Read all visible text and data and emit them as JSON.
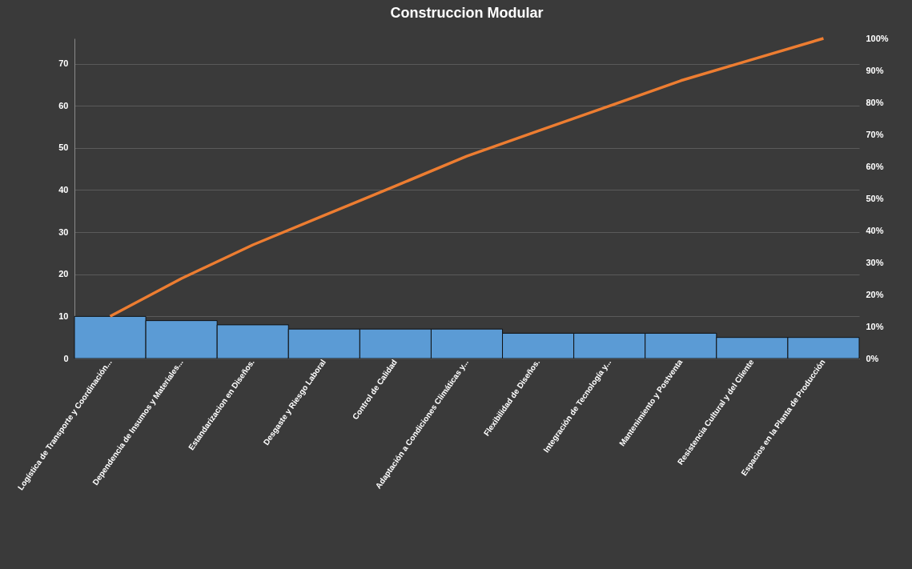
{
  "chart_data": {
    "type": "bar",
    "title": "Construccion Modular",
    "categories": [
      "Logística de Transporte y Coordinación...",
      "Dependencia de Insumos y Materiales...",
      "Estandarizacion en Diseños.",
      "Desgaste y Riesgo Laboral",
      "Control de Calidad",
      "Adaptación a Condiciones Climáticas y...",
      "Flexibilidad de Diseños.",
      "Integración de Tecnología y...",
      "Mantenimiento y Postventa",
      "Resistencia Cultural y del Cliente",
      "Espacios en la Planta de Producción"
    ],
    "series": [
      {
        "color": "#5b9bd5",
        "values": [
          10,
          9,
          8,
          7,
          7,
          7,
          6,
          6,
          6,
          5,
          5
        ]
      },
      {
        "type": "line",
        "axis": "y2",
        "line_style": "solid",
        "color": "#ed7d31",
        "values": [
          13.2,
          25.0,
          35.5,
          44.7,
          53.9,
          63.2,
          71.1,
          78.9,
          86.8,
          93.4,
          100
        ]
      }
    ],
    "ylim": [
      0,
      76
    ],
    "yticks": [
      0,
      10,
      20,
      30,
      40,
      50,
      60,
      70
    ],
    "y2lim": [
      0,
      100
    ],
    "y2ticks": [
      {
        "value": 0,
        "label": "0%"
      },
      {
        "value": 10,
        "label": "10%"
      },
      {
        "value": 20,
        "label": "20%"
      },
      {
        "value": 30,
        "label": "30%"
      },
      {
        "value": 40,
        "label": "40%"
      },
      {
        "value": 50,
        "label": "50%"
      },
      {
        "value": 60,
        "label": "60%"
      },
      {
        "value": 70,
        "label": "70%"
      },
      {
        "value": 80,
        "label": "80%"
      },
      {
        "value": 90,
        "label": "90%"
      },
      {
        "value": 100,
        "label": "100%"
      }
    ],
    "grid": "y"
  }
}
